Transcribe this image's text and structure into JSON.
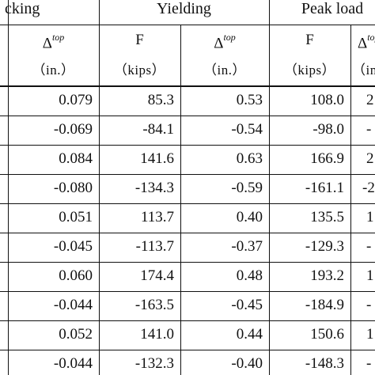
{
  "groups": {
    "cracking": "cking",
    "yielding": "Yielding",
    "peak": "Peak load"
  },
  "headers": {
    "delta_symbol": "Δ",
    "delta_sup": "top",
    "force_symbol": "F",
    "unit_in": "（in.）",
    "unit_kips": "（kips）",
    "partial_unit": "（in"
  },
  "rows": [
    {
      "c_delta": "0.079",
      "y_force": "85.3",
      "y_delta": "0.53",
      "p_force": "108.0",
      "p_partial": "2"
    },
    {
      "c_delta": "-0.069",
      "y_force": "-84.1",
      "y_delta": "-0.54",
      "p_force": "-98.0",
      "p_partial": "-"
    },
    {
      "c_delta": "0.084",
      "y_force": "141.6",
      "y_delta": "0.63",
      "p_force": "166.9",
      "p_partial": "2"
    },
    {
      "c_delta": "-0.080",
      "y_force": "-134.3",
      "y_delta": "-0.59",
      "p_force": "-161.1",
      "p_partial": "-2"
    },
    {
      "c_delta": "0.051",
      "y_force": "113.7",
      "y_delta": "0.40",
      "p_force": "135.5",
      "p_partial": "1"
    },
    {
      "c_delta": "-0.045",
      "y_force": "-113.7",
      "y_delta": "-0.37",
      "p_force": "-129.3",
      "p_partial": "-"
    },
    {
      "c_delta": "0.060",
      "y_force": "174.4",
      "y_delta": "0.48",
      "p_force": "193.2",
      "p_partial": "1"
    },
    {
      "c_delta": "-0.044",
      "y_force": "-163.5",
      "y_delta": "-0.45",
      "p_force": "-184.9",
      "p_partial": "-"
    },
    {
      "c_delta": "0.052",
      "y_force": "141.0",
      "y_delta": "0.44",
      "p_force": "150.6",
      "p_partial": "1"
    },
    {
      "c_delta": "-0.044",
      "y_force": "-132.3",
      "y_delta": "-0.40",
      "p_force": "-148.3",
      "p_partial": "-"
    }
  ]
}
